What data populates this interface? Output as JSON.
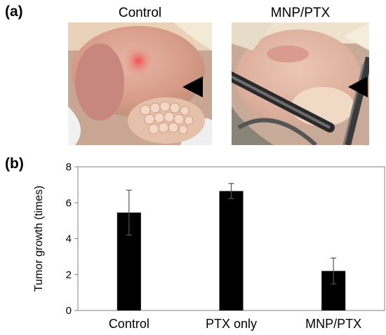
{
  "panel_a": {
    "label": "(a)",
    "photos": [
      {
        "title": "Control"
      },
      {
        "title": "MNP/PTX"
      }
    ]
  },
  "panel_b": {
    "label": "(b)"
  },
  "chart_data": {
    "type": "bar",
    "categories": [
      "Control",
      "PTX only",
      "MNP/PTX"
    ],
    "values": [
      5.45,
      6.65,
      2.2
    ],
    "errors": [
      1.25,
      0.42,
      0.72
    ],
    "ylabel": "Tumor growth (times)",
    "ylim": [
      0,
      8
    ],
    "yticks": [
      0,
      2,
      4,
      6,
      8
    ],
    "grid": false,
    "bar_color": "#000000"
  }
}
